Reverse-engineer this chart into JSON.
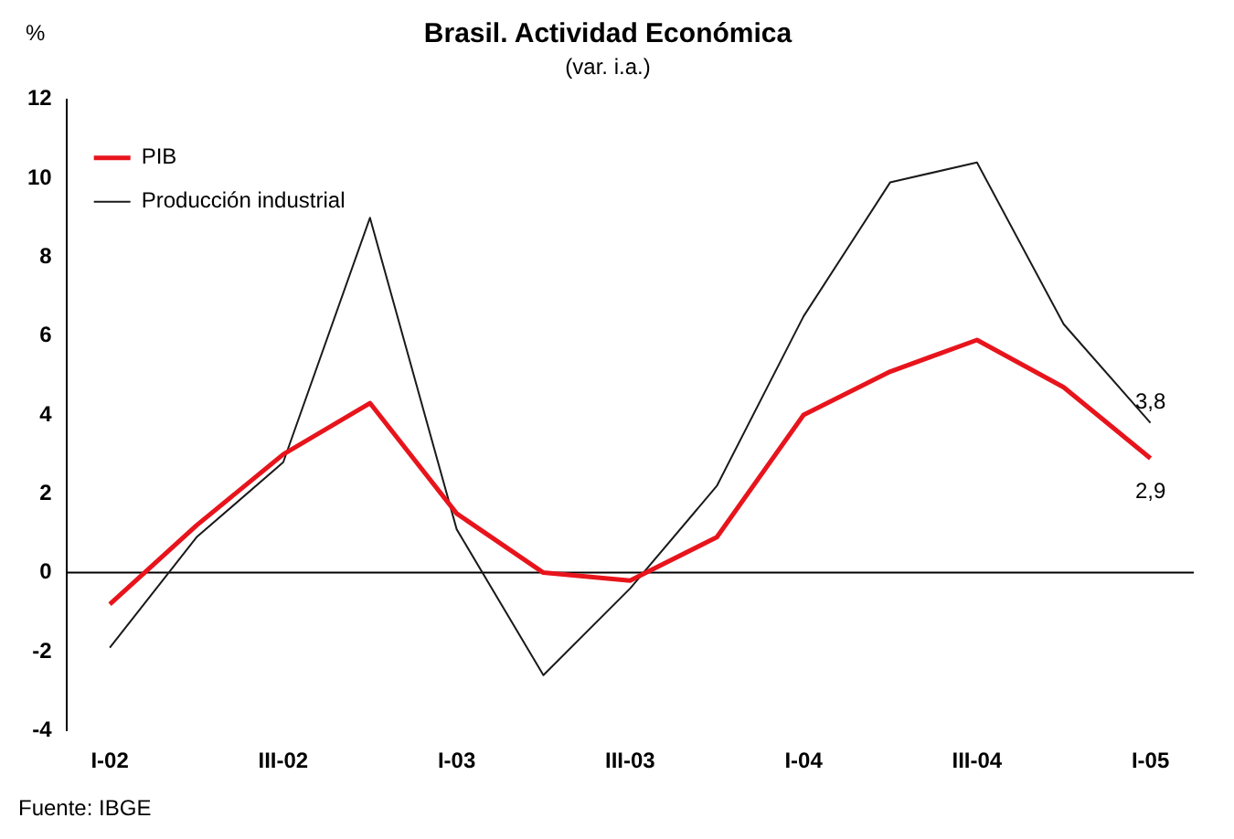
{
  "chart_data": {
    "type": "line",
    "title": "Brasil. Actividad Económica",
    "subtitle": "(var. i.a.)",
    "ylabel": "%",
    "categories": [
      "I-02",
      null,
      "III-02",
      null,
      "I-03",
      null,
      "III-03",
      null,
      "I-04",
      null,
      "III-04",
      null,
      "I-05"
    ],
    "series": [
      {
        "name": "PIB",
        "color": "#e8141c",
        "values": [
          -0.8,
          1.2,
          3.0,
          4.3,
          1.5,
          0.0,
          -0.2,
          0.9,
          4.0,
          5.1,
          5.9,
          4.7,
          2.9
        ],
        "value_labels": [
          null,
          null,
          null,
          null,
          null,
          null,
          null,
          null,
          null,
          null,
          null,
          null,
          "2,9"
        ]
      },
      {
        "name": "Producción industrial",
        "color": "#1a1a1a",
        "values": [
          -1.9,
          0.9,
          2.8,
          9.0,
          1.1,
          -2.6,
          -0.4,
          2.2,
          6.5,
          9.9,
          10.4,
          6.3,
          3.8
        ],
        "value_labels": [
          null,
          null,
          null,
          null,
          null,
          null,
          null,
          null,
          null,
          null,
          null,
          null,
          "3,8"
        ]
      }
    ],
    "ylim": [
      -4,
      12
    ],
    "yticks": [
      -4,
      -2,
      0,
      2,
      4,
      6,
      8,
      10,
      12
    ],
    "grid": false,
    "legend": "top left",
    "marker": "none",
    "ref_lines": [
      {
        "axis": "y",
        "value": 0,
        "color": "#000000"
      }
    ],
    "annotations": [
      "Fuente: IBGE"
    ]
  }
}
